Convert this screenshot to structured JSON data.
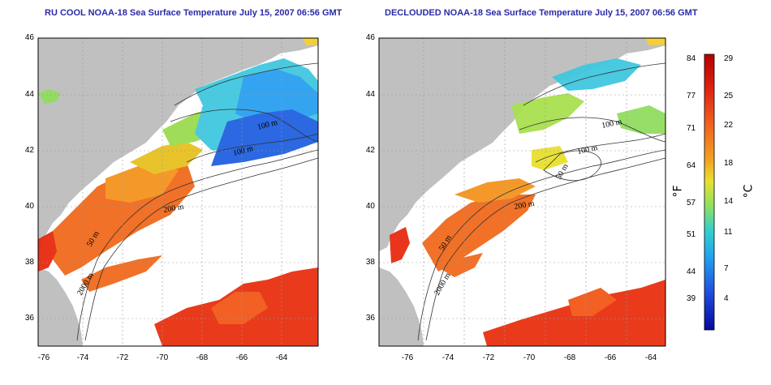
{
  "left_panel": {
    "title": "RU COOL NOAA-18 Sea Surface Temperature July 15, 2007 06:56 GMT",
    "contour_labels": [
      "100 m",
      "100 m",
      "200 m",
      "50 m",
      "2000 m"
    ]
  },
  "right_panel": {
    "title": "DECLOUDED NOAA-18 Sea Surface Temperature July 15, 2007 06:56 GMT",
    "contour_labels": [
      "100 m",
      "100 m",
      "50 m",
      "200 m",
      "50 m",
      "2000 m"
    ]
  },
  "x_ticks": [
    "-76",
    "-74",
    "-72",
    "-70",
    "-68",
    "-66",
    "-64"
  ],
  "y_ticks": [
    "46",
    "44",
    "42",
    "40",
    "38",
    "36"
  ],
  "colorbar": {
    "fahrenheit_label": "°F",
    "celsius_label": "°C",
    "fahrenheit_ticks": [
      "84",
      "77",
      "71",
      "64",
      "57",
      "51",
      "44",
      "39"
    ],
    "celsius_ticks": [
      "29",
      "25",
      "22",
      "18",
      "14",
      "11",
      "7",
      "4"
    ],
    "gradient_colors": [
      "#b40000",
      "#e03010",
      "#f07020",
      "#f4a020",
      "#e8e030",
      "#90e060",
      "#30d0e0",
      "#20a0f0",
      "#2050e0",
      "#1010b0"
    ]
  },
  "colors": {
    "land": "#c0c0c0",
    "title": "#2a2aa8"
  }
}
